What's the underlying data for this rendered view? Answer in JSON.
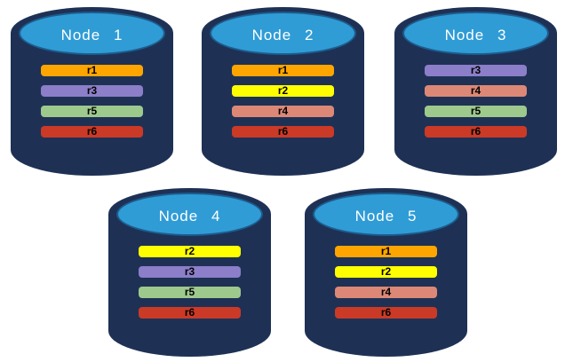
{
  "palette": {
    "cylinder_body": "#1E3155",
    "cylinder_top": "#2F9CD6",
    "cylinder_top_rim": "#1C5C8D",
    "title_text": "#FFFFFF",
    "record_text": "#000000",
    "r1": "#FFA500",
    "r2": "#FFFF00",
    "r3": "#8C7EC8",
    "r4": "#DD8876",
    "r5": "#9EC98D",
    "r6": "#CB3A26"
  },
  "nodes": [
    {
      "name": "Node 1",
      "records": [
        {
          "label": "r1",
          "color": "#FFA500"
        },
        {
          "label": "r3",
          "color": "#8C7EC8"
        },
        {
          "label": "r5",
          "color": "#9EC98D"
        },
        {
          "label": "r6",
          "color": "#CB3A26"
        }
      ]
    },
    {
      "name": "Node 2",
      "records": [
        {
          "label": "r1",
          "color": "#FFA500"
        },
        {
          "label": "r2",
          "color": "#FFFF00"
        },
        {
          "label": "r4",
          "color": "#DD8876"
        },
        {
          "label": "r6",
          "color": "#CB3A26"
        }
      ]
    },
    {
      "name": "Node 3",
      "records": [
        {
          "label": "r3",
          "color": "#8C7EC8"
        },
        {
          "label": "r4",
          "color": "#DD8876"
        },
        {
          "label": "r5",
          "color": "#9EC98D"
        },
        {
          "label": "r6",
          "color": "#CB3A26"
        }
      ]
    },
    {
      "name": "Node 4",
      "records": [
        {
          "label": "r2",
          "color": "#FFFF00"
        },
        {
          "label": "r3",
          "color": "#8C7EC8"
        },
        {
          "label": "r5",
          "color": "#9EC98D"
        },
        {
          "label": "r6",
          "color": "#CB3A26"
        }
      ]
    },
    {
      "name": "Node 5",
      "records": [
        {
          "label": "r1",
          "color": "#FFA500"
        },
        {
          "label": "r2",
          "color": "#FFFF00"
        },
        {
          "label": "r4",
          "color": "#DD8876"
        },
        {
          "label": "r6",
          "color": "#CB3A26"
        }
      ]
    }
  ]
}
